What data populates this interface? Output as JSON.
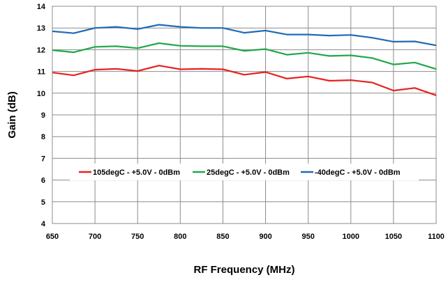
{
  "chart_data": {
    "type": "line",
    "title": "",
    "xlabel": "RF Frequency (MHz)",
    "ylabel": "Gain (dB)",
    "xlim": [
      650,
      1100
    ],
    "ylim": [
      4,
      14
    ],
    "grid": true,
    "legend_position": "lower-middle",
    "x_ticks": [
      "650",
      "700",
      "750",
      "800",
      "850",
      "900",
      "950",
      "1000",
      "1050",
      "1100"
    ],
    "y_ticks": [
      "4",
      "5",
      "6",
      "7",
      "8",
      "9",
      "10",
      "11",
      "12",
      "13",
      "14"
    ],
    "x": [
      650,
      675,
      700,
      725,
      750,
      775,
      800,
      825,
      850,
      875,
      900,
      925,
      950,
      975,
      1000,
      1025,
      1050,
      1075,
      1100
    ],
    "series": [
      {
        "name": "105degC - +5.0V - 0dBm",
        "color": "#e8211f",
        "values": [
          10.95,
          10.82,
          11.08,
          11.12,
          11.02,
          11.27,
          11.1,
          11.12,
          11.1,
          10.85,
          10.97,
          10.67,
          10.77,
          10.57,
          10.6,
          10.49,
          10.12,
          10.24,
          9.9
        ]
      },
      {
        "name": "25degC - +5.0V - 0dBm",
        "color": "#21a84a",
        "values": [
          11.98,
          11.88,
          12.13,
          12.16,
          12.07,
          12.3,
          12.18,
          12.16,
          12.16,
          11.95,
          12.03,
          11.77,
          11.86,
          11.71,
          11.74,
          11.62,
          11.32,
          11.41,
          11.11
        ]
      },
      {
        "name": "-40degC - +5.0V - 0dBm",
        "color": "#1f6bb5",
        "values": [
          12.85,
          12.76,
          13.0,
          13.05,
          12.95,
          13.15,
          13.05,
          13.0,
          13.0,
          12.78,
          12.88,
          12.7,
          12.7,
          12.65,
          12.68,
          12.55,
          12.37,
          12.38,
          12.2
        ]
      }
    ]
  }
}
